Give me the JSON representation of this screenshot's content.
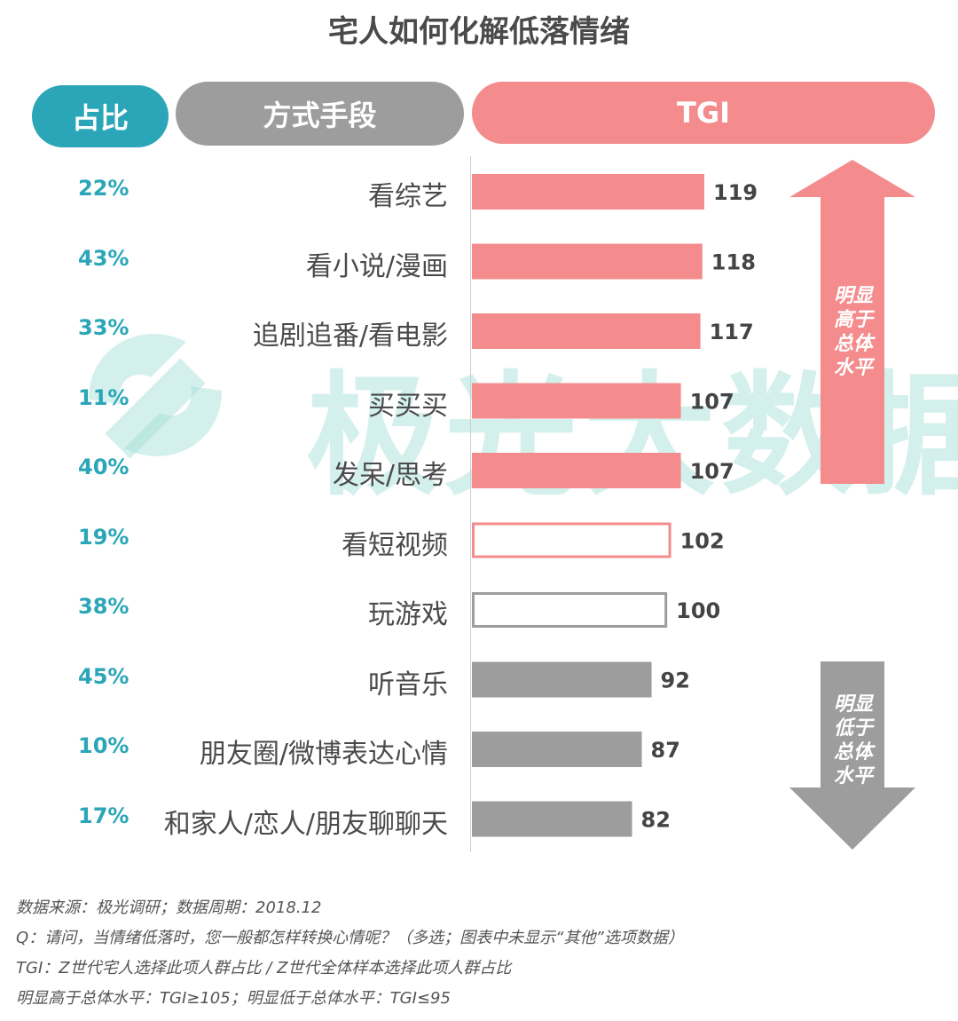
{
  "title": "宅人如何化解低落情绪",
  "headers": {
    "share": "占比",
    "method": "方式手段",
    "tgi": "TGI"
  },
  "watermark": "极光大数据",
  "colors": {
    "teal": "#2aa6b8",
    "gray": "#9d9d9d",
    "pink": "#f48b8c"
  },
  "chart_data": {
    "type": "bar",
    "orientation": "horizontal",
    "title": "宅人如何化解低落情绪",
    "categories": [
      "看综艺",
      "看小说/漫画",
      "追剧追番/看电影",
      "买买买",
      "发呆/思考",
      "看短视频",
      "玩游戏",
      "听音乐",
      "朋友圈/微博表达心情",
      "和家人/恋人/朋友聊聊天"
    ],
    "share_labels": [
      "22%",
      "43%",
      "33%",
      "11%",
      "40%",
      "19%",
      "38%",
      "45%",
      "10%",
      "17%"
    ],
    "values": [
      119,
      118,
      117,
      107,
      107,
      102,
      100,
      92,
      87,
      82
    ],
    "styles": [
      "high",
      "high",
      "high",
      "high",
      "high",
      "outline-pink",
      "outline-gray",
      "low",
      "low",
      "low"
    ],
    "annotations": {
      "up": "明显高于总体水平",
      "down": "明显低于总体水平"
    }
  },
  "arrow_up_lines": [
    "明显",
    "高于",
    "总体",
    "水平"
  ],
  "arrow_down_lines": [
    "明显",
    "低于",
    "总体",
    "水平"
  ],
  "notes": [
    "数据来源：极光调研；数据周期：2018.12",
    "Q：请问，当情绪低落时，您一般都怎样转换心情呢？（多选；图表中未显示“其他”选项数据）",
    "TGI：Z世代宅人选择此项人群占比 / Z世代全体样本选择此项人群占比",
    "明显高于总体水平：TGI≥105；明显低于总体水平：TGI≤95"
  ]
}
